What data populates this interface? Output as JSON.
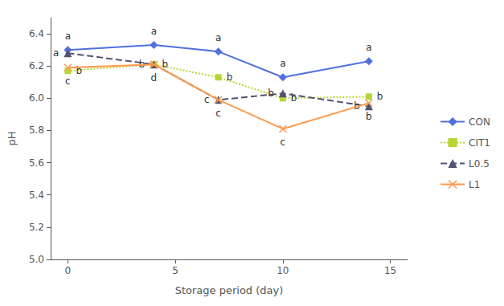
{
  "chart_data": {
    "type": "line",
    "x": [
      0,
      4,
      7,
      10,
      14
    ],
    "series": [
      {
        "name": "CON",
        "values": [
          6.3,
          6.33,
          6.29,
          6.13,
          6.23
        ],
        "marker": "diamond",
        "line_style": "solid",
        "annotations": [
          "a",
          "a",
          "a",
          "a",
          "a"
        ]
      },
      {
        "name": "CIT1",
        "values": [
          6.17,
          6.21,
          6.13,
          6.0,
          6.01
        ],
        "marker": "square",
        "line_style": "dotted",
        "annotations": [
          "b",
          "b",
          "b",
          "b",
          "b"
        ]
      },
      {
        "name": "L0.5",
        "values": [
          6.28,
          6.21,
          5.99,
          6.03,
          5.95
        ],
        "marker": "triangle",
        "line_style": "dashed",
        "annotations": [
          "a",
          "b",
          "c",
          "b",
          "b"
        ]
      },
      {
        "name": "L1",
        "values": [
          6.19,
          6.21,
          5.99,
          5.81,
          5.97
        ],
        "marker": "x",
        "line_style": "solid",
        "annotations": [
          "c",
          "d",
          "c",
          "c",
          "b"
        ]
      }
    ],
    "xlabel": "Storage period (day)",
    "ylabel": "pH",
    "xlim": [
      -0.8,
      15.8
    ],
    "xticks": [
      0,
      5,
      10,
      15
    ],
    "ylim": [
      5.0,
      6.5
    ],
    "yticks": [
      {
        "value": 5.0,
        "label": "5.0"
      },
      5.2,
      5.4,
      5.6,
      5.8,
      {
        "value": 6.0,
        "label": "6.0"
      },
      6.2,
      6.4
    ],
    "grid": false,
    "legend": "right"
  }
}
